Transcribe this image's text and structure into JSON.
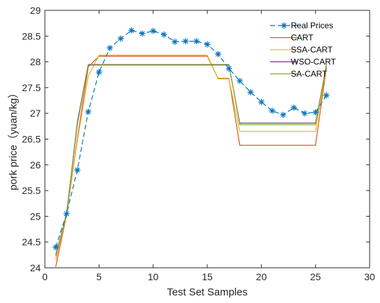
{
  "chart_data": {
    "type": "line",
    "title": "",
    "xlabel": "Test Set Samples",
    "ylabel": "pork price（yuan/kg）",
    "xlim": [
      0,
      30
    ],
    "ylim": [
      24,
      29
    ],
    "x_ticks": [
      0,
      5,
      10,
      15,
      20,
      25,
      30
    ],
    "y_ticks": [
      24,
      24.5,
      25,
      25.5,
      26,
      26.5,
      27,
      27.5,
      28,
      28.5,
      29
    ],
    "grid": false,
    "legend_position": "top-right",
    "x": [
      1,
      2,
      3,
      4,
      5,
      6,
      7,
      8,
      9,
      10,
      11,
      12,
      13,
      14,
      15,
      16,
      17,
      18,
      19,
      20,
      21,
      22,
      23,
      24,
      25,
      26
    ],
    "series": [
      {
        "name": "Real Prices",
        "color": "#0072BD",
        "style": "dashed-star",
        "values": [
          24.4,
          25.05,
          25.9,
          27.03,
          27.8,
          28.27,
          28.45,
          28.61,
          28.55,
          28.6,
          28.53,
          28.39,
          28.4,
          28.4,
          28.34,
          28.15,
          27.87,
          27.63,
          27.41,
          27.22,
          27.05,
          26.97,
          27.11,
          27.0,
          27.02,
          27.35
        ]
      },
      {
        "name": "CART",
        "color": "#D95319",
        "style": "solid",
        "values": [
          24.02,
          25.02,
          26.51,
          27.9,
          28.11,
          28.11,
          28.11,
          28.11,
          28.11,
          28.11,
          28.11,
          28.11,
          28.11,
          28.11,
          28.11,
          27.68,
          27.68,
          26.38,
          26.38,
          26.38,
          26.38,
          26.38,
          26.38,
          26.38,
          26.38,
          27.88
        ]
      },
      {
        "name": "SSA-CART",
        "color": "#EDB120",
        "style": "solid",
        "values": [
          24.15,
          25.03,
          26.47,
          27.72,
          28.13,
          28.13,
          28.13,
          28.13,
          28.13,
          28.13,
          28.13,
          28.13,
          28.13,
          28.13,
          28.13,
          27.67,
          27.67,
          26.65,
          26.65,
          26.65,
          26.65,
          26.65,
          26.65,
          26.65,
          26.65,
          27.9
        ]
      },
      {
        "name": "WSO-CART",
        "color": "#7E2F8E",
        "style": "solid",
        "values": [
          24.25,
          25.04,
          26.8,
          27.94,
          27.94,
          27.94,
          27.94,
          27.94,
          27.94,
          27.94,
          27.94,
          27.94,
          27.94,
          27.94,
          27.94,
          27.94,
          27.94,
          26.81,
          26.81,
          26.81,
          26.81,
          26.81,
          26.81,
          26.81,
          26.81,
          27.92
        ]
      },
      {
        "name": "SA-CART",
        "color": "#77AC30",
        "style": "solid",
        "values": [
          24.22,
          25.05,
          26.85,
          27.95,
          27.95,
          27.95,
          27.95,
          27.95,
          27.95,
          27.95,
          27.95,
          27.95,
          27.95,
          27.95,
          27.95,
          27.95,
          27.95,
          26.78,
          26.78,
          26.78,
          26.78,
          26.78,
          26.78,
          26.78,
          26.78,
          27.95
        ]
      }
    ]
  }
}
